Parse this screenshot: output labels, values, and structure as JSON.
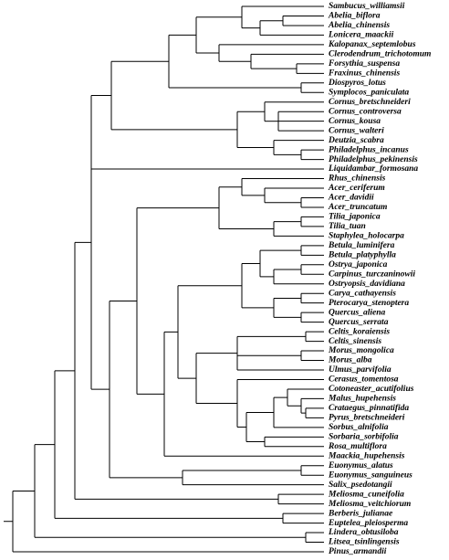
{
  "leaves": [
    "Sambucus_williamsii",
    "Abelia_biflora",
    "Abelia_chinensis",
    "Lonicera_maackii",
    "Kalopanax_septemlobus",
    "Clerodendrum_trichotomum",
    "Forsythia_suspensa",
    "Fraxinus_chinensis",
    "Diospyros_lotus",
    "Symplocos_paniculata",
    "Cornus_bretschneideri",
    "Cornus_controversa",
    "Cornus_kousa",
    "Cornus_walteri",
    "Deutzia_scabra",
    "Philadelphus_incanus",
    "Philadelphus_pekinensis",
    "Liquidambar_formosana",
    "Rhus_chinensis",
    "Acer_ceriferum",
    "Acer_davidii",
    "Acer_truncatum",
    "Tilia_japonica",
    "Tilia_tuan",
    "Staphylea_holocarpa",
    "Betula_luminifera",
    "Betula_platyphylla",
    "Ostrya_japonica",
    "Carpinus_turczaninowii",
    "Ostryopsis_davidiana",
    "Carya_cathayensis",
    "Pterocarya_stenoptera",
    "Quercus_aliena",
    "Quercus_serrata",
    "Celtis_koraiensis",
    "Celtis_sinensis",
    "Morus_mongolica",
    "Morus_alba",
    "Ulmus_parvifolia",
    "Cerasus_tomentosa",
    "Cotoneaster_acutifolius",
    "Malus_hupehensis",
    "Crataegus_pinnatifida",
    "Pyrus_bretschneideri",
    "Sorbus_alnifolia",
    "Sorbaria_sorbifolia",
    "Rosa_multiflora",
    "Maackia_hupehensis",
    "Euonymus_alatus",
    "Euonymus_sanguineus",
    "Salix_psedotangii",
    "Meliosma_cuneifolia",
    "Meliosma_veitchiorum",
    "Berberis_julianae",
    "Euptelea_pleiosperma",
    "Lindera_obtusiloba",
    "Litsea_tsinlingensis",
    "Pinus_armandii"
  ]
}
